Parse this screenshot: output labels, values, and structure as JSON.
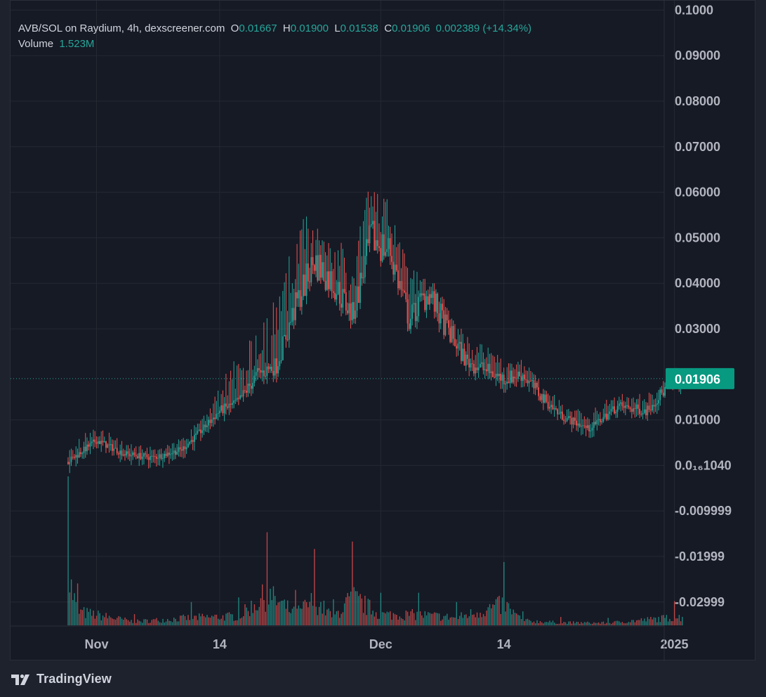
{
  "header": {
    "pair": "AVB/SOL on Raydium, 4h, dexscreener.com",
    "o_label": "O",
    "o_value": "0.01667",
    "h_label": "H",
    "h_value": "0.01900",
    "l_label": "L",
    "l_value": "0.01538",
    "c_label": "C",
    "c_value": "0.01906",
    "change": "0.002389 (+14.34%)",
    "volume_label": "Volume",
    "volume_value": "1.523M"
  },
  "last_price_label": "0.01906",
  "footer": {
    "brand": "TradingView"
  },
  "colors": {
    "up": "#26a69a",
    "down": "#ef5350",
    "grid": "#242832",
    "axis_text": "#b2b5be",
    "background": "#161a25"
  },
  "chart_data": {
    "type": "candlestick",
    "interval": "4h",
    "y_tick_labels": [
      "0.1000",
      "0.09000",
      "0.08000",
      "0.07000",
      "0.06000",
      "0.05000",
      "0.04000",
      "0.03000",
      "0.01000",
      "0.0₁₆1040",
      "-0.009999",
      "-0.01999",
      "-0.02999"
    ],
    "y_tick_values": [
      0.1,
      0.09,
      0.08,
      0.07,
      0.06,
      0.05,
      0.04,
      0.03,
      0.01,
      0.0,
      -0.01,
      -0.02,
      -0.03
    ],
    "x_tick_labels": [
      "Nov",
      "14",
      "Dec",
      "14",
      "2025"
    ],
    "x_tick_dates": [
      "2024-11-01",
      "2024-11-14",
      "2024-12-01",
      "2024-12-14",
      "2025-01-01"
    ],
    "x_range": [
      "2024-10-27",
      "2025-01-04"
    ],
    "last_price": 0.01906,
    "price_series": {
      "name": "AVB/SOL",
      "dates": [
        "2024-10-29",
        "2024-11-01",
        "2024-11-04",
        "2024-11-07",
        "2024-11-10",
        "2024-11-12",
        "2024-11-14",
        "2024-11-16",
        "2024-11-18",
        "2024-11-20",
        "2024-11-22",
        "2024-11-24",
        "2024-11-26",
        "2024-11-28",
        "2024-11-30",
        "2024-12-02",
        "2024-12-04",
        "2024-12-06",
        "2024-12-08",
        "2024-12-10",
        "2024-12-12",
        "2024-12-14",
        "2024-12-16",
        "2024-12-18",
        "2024-12-20",
        "2024-12-23",
        "2024-12-26",
        "2024-12-29",
        "2025-01-01"
      ],
      "close": [
        0.0008,
        0.0055,
        0.0025,
        0.0017,
        0.0035,
        0.0075,
        0.012,
        0.014,
        0.02,
        0.022,
        0.035,
        0.045,
        0.04,
        0.033,
        0.05,
        0.047,
        0.032,
        0.038,
        0.03,
        0.023,
        0.021,
        0.019,
        0.02,
        0.015,
        0.011,
        0.008,
        0.013,
        0.012,
        0.019
      ],
      "high": [
        0.005,
        0.008,
        0.004,
        0.003,
        0.005,
        0.01,
        0.018,
        0.026,
        0.032,
        0.04,
        0.06,
        0.056,
        0.05,
        0.056,
        0.065,
        0.059,
        0.045,
        0.042,
        0.035,
        0.028,
        0.028,
        0.023,
        0.023,
        0.018,
        0.013,
        0.011,
        0.016,
        0.015,
        0.0195
      ]
    },
    "volume_series": {
      "name": "Volume",
      "dates": [
        "2024-10-29",
        "2024-10-30",
        "2024-11-05",
        "2024-11-11",
        "2024-11-16",
        "2024-11-19",
        "2024-11-22",
        "2024-11-24",
        "2024-11-26",
        "2024-11-28",
        "2024-12-01",
        "2024-12-05",
        "2024-12-09",
        "2024-12-14",
        "2024-12-16",
        "2024-12-20",
        "2024-12-25",
        "2025-01-01"
      ],
      "values": [
        16000000,
        4500000,
        1200000,
        2500000,
        3000000,
        10000000,
        3800000,
        8200000,
        2800000,
        9000000,
        3500000,
        3500000,
        2500000,
        6800000,
        1500000,
        900000,
        800000,
        2600000
      ]
    }
  }
}
